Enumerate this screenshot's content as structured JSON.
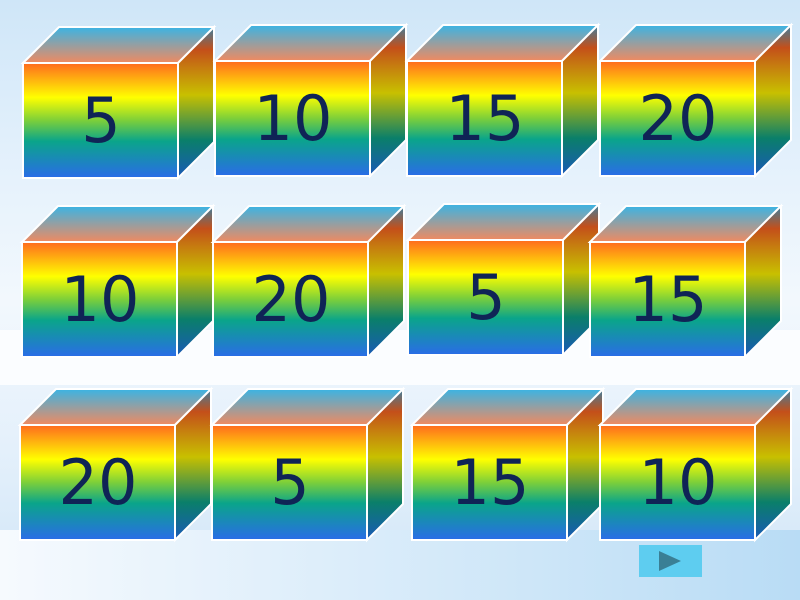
{
  "cubes": [
    {
      "label": "5"
    },
    {
      "label": "10"
    },
    {
      "label": "15"
    },
    {
      "label": "20"
    },
    {
      "label": "10"
    },
    {
      "label": "20"
    },
    {
      "label": "5"
    },
    {
      "label": "15"
    },
    {
      "label": "20"
    },
    {
      "label": "5"
    },
    {
      "label": "15"
    },
    {
      "label": "10"
    }
  ],
  "next_button": {
    "icon": "play-triangle-icon",
    "color": "#5ecdf0",
    "icon_color": "#3a7f95"
  },
  "colors": {
    "number": "#0f2456"
  }
}
